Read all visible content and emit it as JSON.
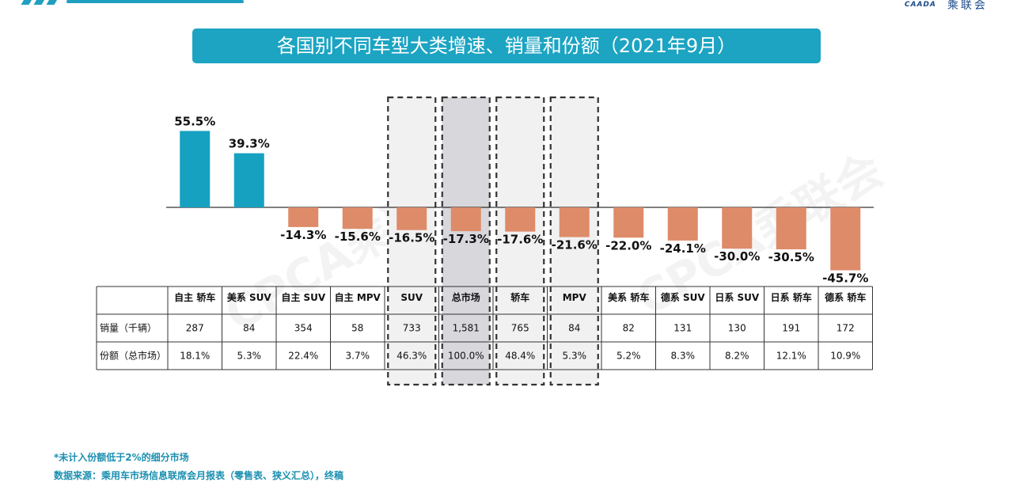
{
  "header": {
    "logo_mark": "CAADA",
    "logo_name": "乘联会"
  },
  "title": "各国别不同车型大类增速、销量和份额（2021年9月）",
  "chart_data": {
    "type": "bar",
    "title": "各国别不同车型大类增速、销量和份额（2021年9月）",
    "categories": [
      "自主 轿车",
      "美系 SUV",
      "自主 SUV",
      "自主 MPV",
      "SUV",
      "总市场",
      "轿车",
      "MPV",
      "美系 轿车",
      "德系 SUV",
      "日系 SUV",
      "日系 轿车",
      "德系 轿车"
    ],
    "values": [
      55.5,
      39.3,
      -14.3,
      -15.6,
      -16.5,
      -17.3,
      -17.6,
      -21.6,
      -22.0,
      -24.1,
      -30.0,
      -30.5,
      -45.7
    ],
    "value_labels": [
      "55.5%",
      "39.3%",
      "-14.3%",
      "-15.6%",
      "-16.5%",
      "-17.3%",
      "-17.6%",
      "-21.6%",
      "-22.0%",
      "-24.1%",
      "-30.0%",
      "-30.5%",
      "-45.7%"
    ],
    "unit": "%",
    "positive_color": "#16a1c1",
    "negative_color": "#de8b69",
    "highlighted": [
      "SUV",
      "总市场",
      "轿车",
      "MPV"
    ],
    "highlight_fill": "#f1f1f1",
    "total_market_fill": "#d7d7dc",
    "ylim": [
      -50,
      60
    ],
    "grid": false,
    "table": {
      "rows": [
        {
          "label": "销量（千辆）",
          "values": [
            "287",
            "84",
            "354",
            "58",
            "733",
            "1,581",
            "765",
            "84",
            "82",
            "131",
            "130",
            "191",
            "172"
          ]
        },
        {
          "label": "份额（总市场）",
          "values": [
            "18.1%",
            "5.3%",
            "22.4%",
            "3.7%",
            "46.3%",
            "100.0%",
            "48.4%",
            "5.3%",
            "5.2%",
            "8.3%",
            "8.2%",
            "12.1%",
            "10.9%"
          ]
        }
      ]
    }
  },
  "watermark": "CPCA乘联会",
  "footnote": "*未计入份额低于2%的细分市场",
  "source": "数据来源：乘用车市场信息联席会月报表（零售表、狭义汇总），终稿"
}
